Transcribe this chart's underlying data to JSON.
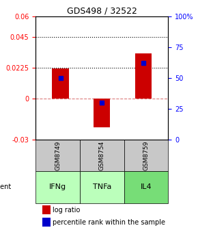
{
  "title": "GDS498 / 32522",
  "samples": [
    "IFNg",
    "TNFa",
    "IL4"
  ],
  "gsm_labels": [
    "GSM8749",
    "GSM8754",
    "GSM8759"
  ],
  "log_ratios": [
    0.022,
    -0.021,
    0.033
  ],
  "percentile_ranks": [
    50,
    30,
    62
  ],
  "ylim_left": [
    -0.03,
    0.06
  ],
  "ylim_right": [
    0,
    100
  ],
  "yticks_left": [
    -0.03,
    0,
    0.0225,
    0.045,
    0.06
  ],
  "ytick_labels_left": [
    "-0.03",
    "0",
    "0.0225",
    "0.045",
    "0.06"
  ],
  "yticks_right": [
    0,
    25,
    50,
    75,
    100
  ],
  "ytick_labels_right": [
    "0",
    "25",
    "50",
    "75",
    "100%"
  ],
  "hlines": [
    0.045,
    0.0225
  ],
  "hline_zero": 0,
  "bar_color": "#cc0000",
  "dot_color": "#0000cc",
  "gsm_bg": "#c8c8c8",
  "agent_bg_colors": [
    "#aaffaa",
    "#aaffaa",
    "#66dd66"
  ],
  "agent_bg": "#99ee99",
  "bar_width": 0.4,
  "legend_items": [
    "log ratio",
    "percentile rank within the sample"
  ]
}
